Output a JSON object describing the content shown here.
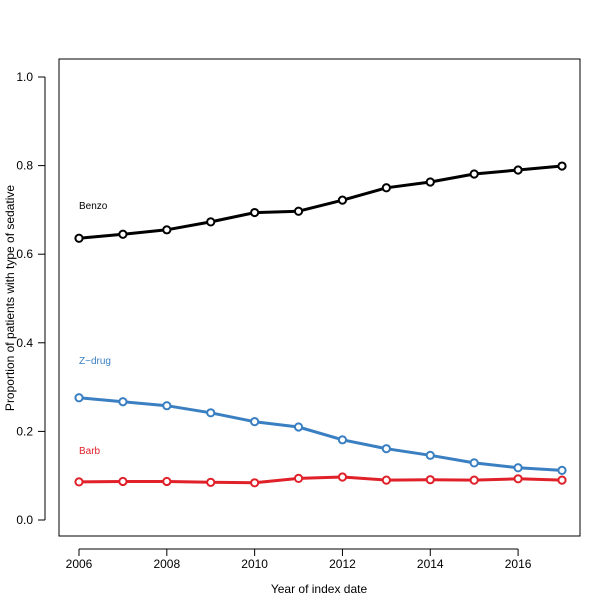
{
  "chart_data": {
    "type": "line",
    "title": "",
    "xlabel": "Year of index date",
    "ylabel": "Proportion of patients with type of sedative",
    "x": [
      2006,
      2007,
      2008,
      2009,
      2010,
      2011,
      2012,
      2013,
      2014,
      2015,
      2016,
      2017
    ],
    "xlim": [
      2006,
      2017
    ],
    "ylim": [
      0.0,
      1.0
    ],
    "x_ticks": [
      "2006",
      "2008",
      "2010",
      "2012",
      "2014",
      "2016"
    ],
    "y_ticks": [
      "0.0",
      "0.2",
      "0.4",
      "0.6",
      "0.8",
      "1.0"
    ],
    "grid": false,
    "legend": "none",
    "series": [
      {
        "name": "Benzo",
        "color": "#000000",
        "values": [
          0.636,
          0.645,
          0.655,
          0.673,
          0.694,
          0.697,
          0.722,
          0.75,
          0.763,
          0.781,
          0.79,
          0.799
        ]
      },
      {
        "name": "Z−drug",
        "color": "#3a7fc1",
        "values": [
          0.276,
          0.267,
          0.258,
          0.242,
          0.222,
          0.21,
          0.181,
          0.161,
          0.146,
          0.129,
          0.118,
          0.112
        ]
      },
      {
        "name": "Barb",
        "color": "#e0212a",
        "values": [
          0.086,
          0.087,
          0.087,
          0.085,
          0.084,
          0.094,
          0.097,
          0.09,
          0.091,
          0.09,
          0.093,
          0.09
        ]
      }
    ]
  }
}
